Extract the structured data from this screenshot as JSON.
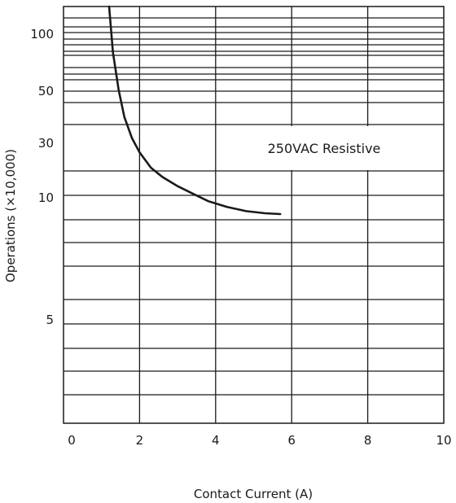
{
  "chart_data": {
    "type": "line",
    "xlabel": "Contact Current (A)",
    "ylabel": "Operations (×10,000)",
    "xlim": [
      0,
      10
    ],
    "x_ticks": [
      0,
      2,
      4,
      6,
      8,
      10
    ],
    "x_tick_labels": [
      "0",
      "2",
      "4",
      "6",
      "8",
      "10"
    ],
    "y_tick_labels": [
      "100",
      "50",
      "30",
      "10",
      "5"
    ],
    "grid": true,
    "annotation": "250VAC Resistive",
    "series": [
      {
        "x": [
          1.2,
          1.3,
          1.45,
          1.6,
          1.8,
          2.0,
          2.3,
          2.6,
          3.0,
          3.4,
          3.8,
          4.3,
          4.8,
          5.3,
          5.7
        ],
        "y_position": [
          0.0,
          0.11,
          0.2,
          0.265,
          0.316,
          0.35,
          0.387,
          0.409,
          0.431,
          0.449,
          0.467,
          0.481,
          0.491,
          0.496,
          0.498
        ]
      }
    ],
    "line_color": "#1a1a1a"
  }
}
